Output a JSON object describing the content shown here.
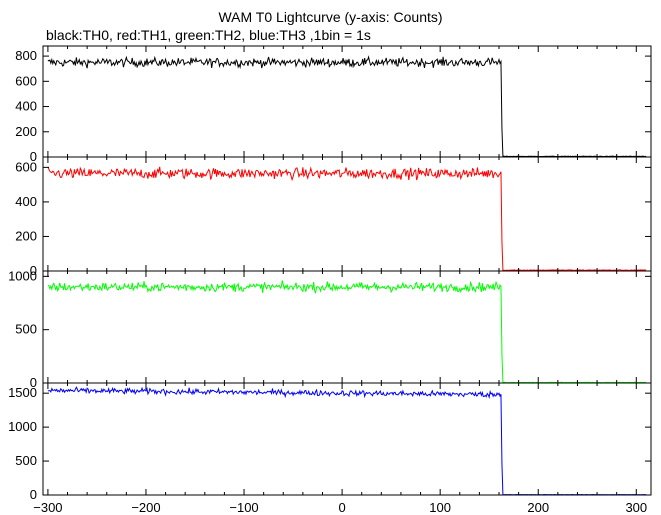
{
  "chart_data": {
    "type": "line",
    "title": "WAM T0 Lightcurve (y-axis: Counts)",
    "subtitle": "black:TH0, red:TH1, green:TH2, blue:TH3 ,1bin = 1s",
    "xlim": [
      -305,
      315
    ],
    "x_ticks": [
      -300,
      -200,
      -100,
      0,
      100,
      200,
      300
    ],
    "grid": false,
    "panels": [
      {
        "name": "TH0",
        "color": "#000000",
        "ylim": [
          0,
          880
        ],
        "y_ticks": [
          0,
          200,
          400,
          600,
          800
        ],
        "pre_level": 750,
        "noise": 25,
        "drop_x": 163,
        "post_level": 5,
        "x_range": [
          -300,
          310
        ]
      },
      {
        "name": "TH1",
        "color": "#ff0000",
        "ylim": [
          0,
          660
        ],
        "y_ticks": [
          0,
          200,
          400,
          600
        ],
        "pre_level": 565,
        "noise": 22,
        "drop_x": 163,
        "post_level": 5,
        "x_range": [
          -300,
          310
        ]
      },
      {
        "name": "TH2",
        "color": "#00ff00",
        "ylim": [
          0,
          1050
        ],
        "y_ticks": [
          0,
          500,
          1000
        ],
        "pre_level": 900,
        "noise": 30,
        "drop_x": 163,
        "post_level": 5,
        "x_range": [
          -300,
          310
        ]
      },
      {
        "name": "TH3",
        "color": "#0000ff",
        "ylim": [
          0,
          1650
        ],
        "y_ticks": [
          0,
          500,
          1000,
          1500
        ],
        "pre_level": 1540,
        "pre_level_end": 1480,
        "noise": 30,
        "drop_x": 163,
        "post_level": 5,
        "x_range": [
          -300,
          310
        ]
      }
    ]
  }
}
